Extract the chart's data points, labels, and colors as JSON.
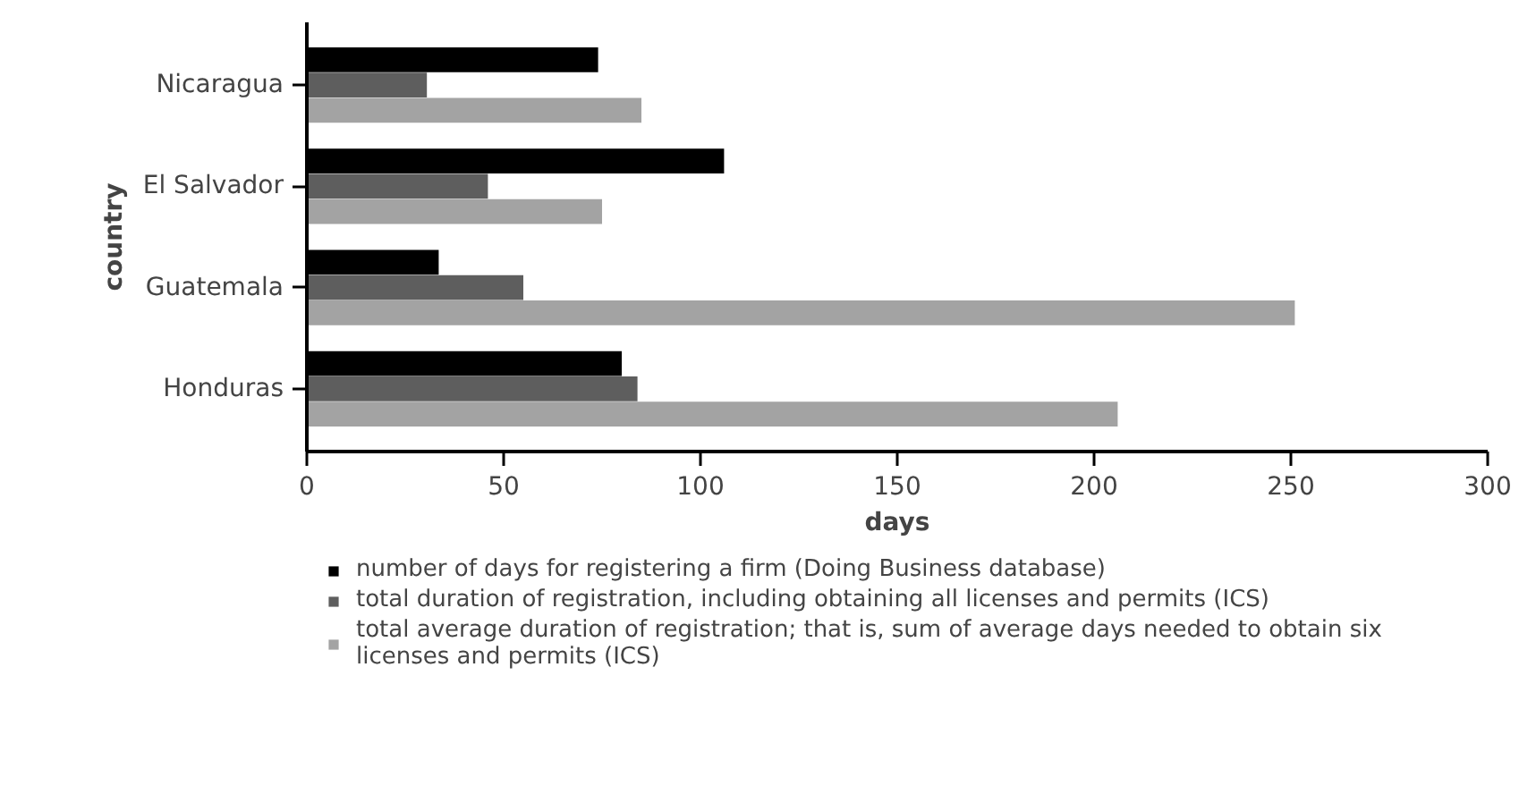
{
  "chart_data": {
    "type": "bar",
    "orientation": "horizontal",
    "xlabel": "days",
    "ylabel": "country",
    "categories": [
      "Nicaragua",
      "El Salvador",
      "Guatemala",
      "Honduras"
    ],
    "series": [
      {
        "name": "number of days for registering a firm (Doing Business database)",
        "color": "#000000",
        "values": [
          74,
          106,
          33.5,
          80
        ]
      },
      {
        "name": "total duration of registration, including obtaining all licenses and permits (ICS)",
        "color": "#5e5e5e",
        "values": [
          30.5,
          46,
          55,
          84
        ]
      },
      {
        "name": "total average duration of registration; that is, sum of average days needed to obtain six licenses and permits (ICS)",
        "color": "#a3a3a3",
        "values": [
          85,
          75,
          251,
          206
        ]
      }
    ],
    "xlim": [
      0,
      300
    ],
    "xticks": [
      0,
      50,
      100,
      150,
      200,
      250,
      300
    ],
    "grid": false,
    "legend": "bottom"
  }
}
